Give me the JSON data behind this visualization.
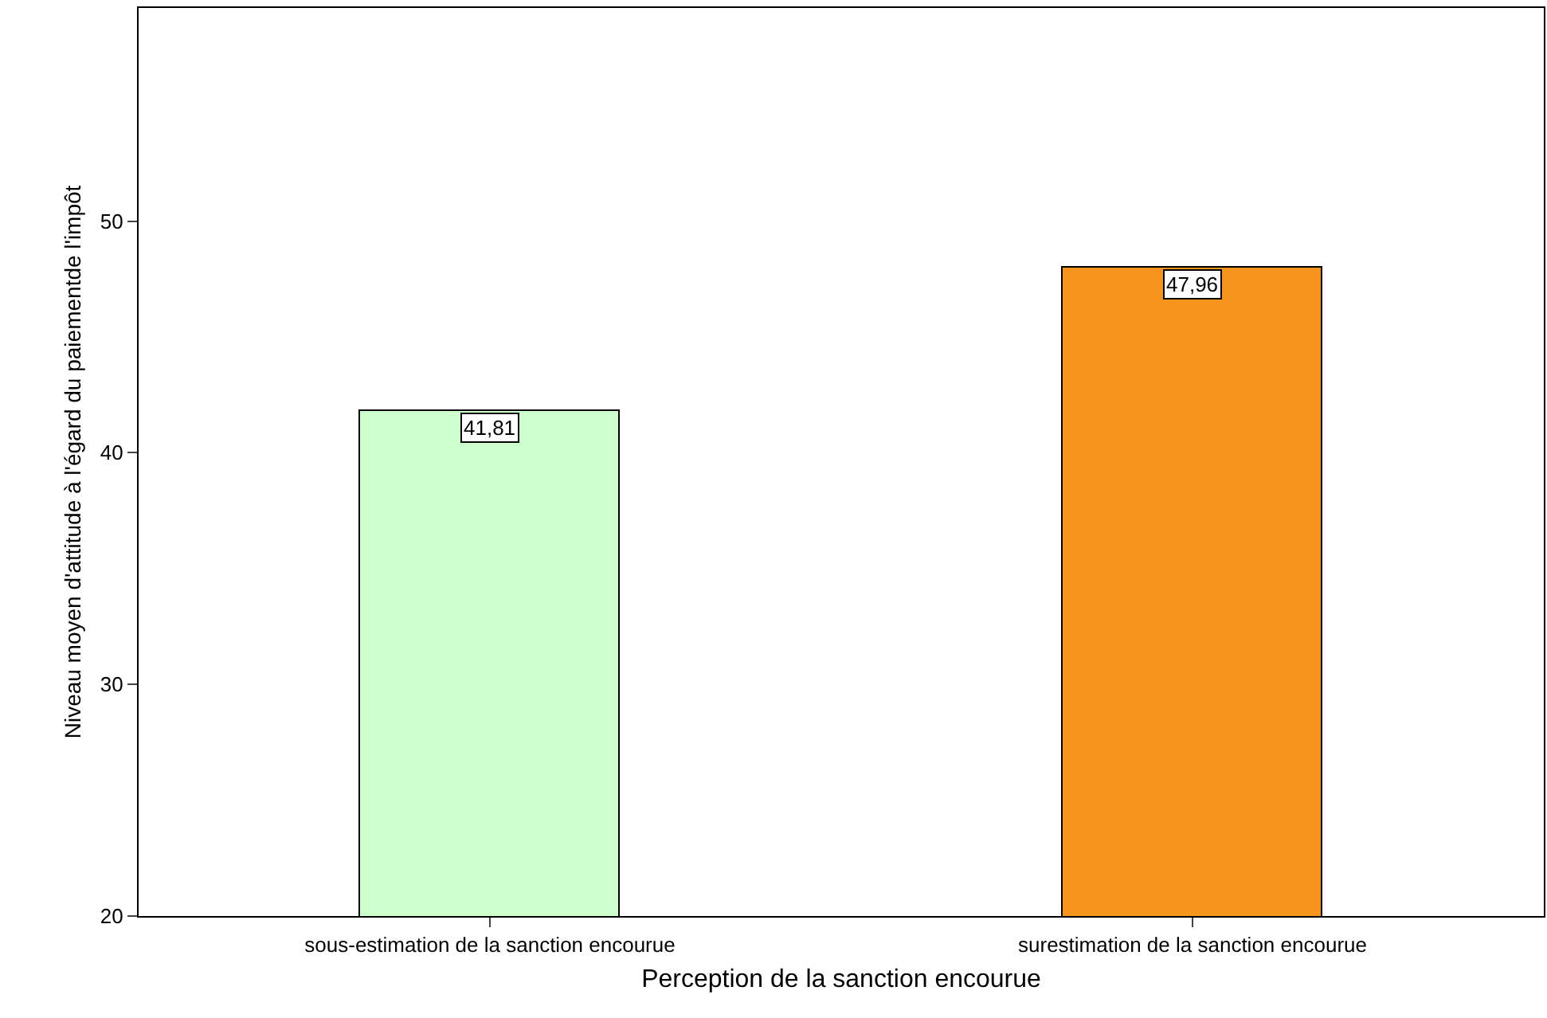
{
  "chart_data": {
    "type": "bar",
    "xlabel": "Perception de la sanction encourue",
    "ylabel": "Niveau moyen d'attitude à l'égard du paiementde l'impôt",
    "categories": [
      "sous-estimation de la sanction encourue",
      "surestimation de la sanction encourue"
    ],
    "values": [
      41.81,
      47.96
    ],
    "colors": [
      "#ccffcc",
      "#f7941d"
    ],
    "value_labels": [
      "41,81",
      "47,96"
    ],
    "ylim": [
      20,
      59.2
    ],
    "yticks": [
      20,
      30,
      40,
      50
    ],
    "legend": false
  }
}
